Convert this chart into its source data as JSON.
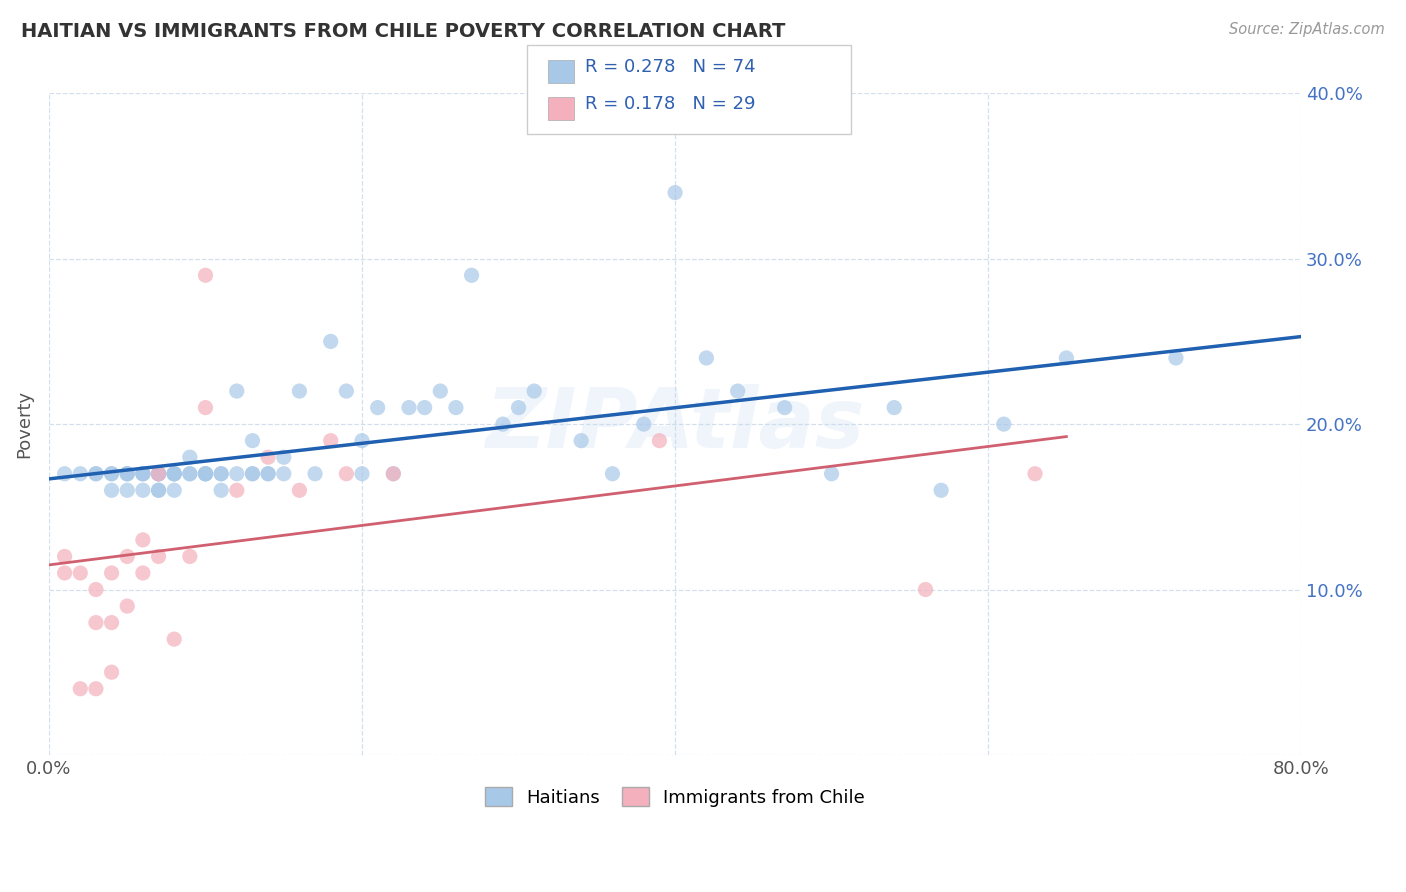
{
  "title": "HAITIAN VS IMMIGRANTS FROM CHILE POVERTY CORRELATION CHART",
  "source": "Source: ZipAtlas.com",
  "ylabel": "Poverty",
  "xlim": [
    0.0,
    0.8
  ],
  "ylim": [
    0.0,
    0.4
  ],
  "xticks": [
    0.0,
    0.2,
    0.4,
    0.6,
    0.8
  ],
  "xtick_labels": [
    "0.0%",
    "",
    "",
    "",
    "80.0%"
  ],
  "yticks": [
    0.0,
    0.1,
    0.2,
    0.3,
    0.4
  ],
  "ytick_labels_right": [
    "",
    "10.0%",
    "20.0%",
    "30.0%",
    "40.0%"
  ],
  "legend_labels": [
    "Haitians",
    "Immigrants from Chile"
  ],
  "r1": "0.278",
  "n1": "74",
  "r2": "0.178",
  "n2": "29",
  "blue_scatter": "#a8c8e8",
  "pink_scatter": "#f4b0bc",
  "blue_line": "#2060b0",
  "pink_line": "#d06070",
  "watermark": "ZIPAtlas",
  "haitians_x": [
    0.01,
    0.02,
    0.03,
    0.03,
    0.04,
    0.04,
    0.04,
    0.05,
    0.05,
    0.05,
    0.05,
    0.06,
    0.06,
    0.06,
    0.06,
    0.07,
    0.07,
    0.07,
    0.07,
    0.07,
    0.07,
    0.08,
    0.08,
    0.08,
    0.08,
    0.08,
    0.09,
    0.09,
    0.09,
    0.1,
    0.1,
    0.1,
    0.1,
    0.11,
    0.11,
    0.11,
    0.12,
    0.12,
    0.13,
    0.13,
    0.13,
    0.14,
    0.14,
    0.15,
    0.15,
    0.16,
    0.17,
    0.18,
    0.19,
    0.2,
    0.2,
    0.21,
    0.22,
    0.23,
    0.24,
    0.25,
    0.26,
    0.27,
    0.29,
    0.3,
    0.31,
    0.34,
    0.36,
    0.38,
    0.4,
    0.42,
    0.44,
    0.47,
    0.5,
    0.54,
    0.57,
    0.61,
    0.65,
    0.72
  ],
  "haitians_y": [
    0.17,
    0.17,
    0.17,
    0.17,
    0.17,
    0.16,
    0.17,
    0.17,
    0.17,
    0.16,
    0.17,
    0.17,
    0.17,
    0.17,
    0.16,
    0.17,
    0.17,
    0.16,
    0.17,
    0.16,
    0.17,
    0.17,
    0.17,
    0.16,
    0.17,
    0.17,
    0.17,
    0.17,
    0.18,
    0.17,
    0.17,
    0.17,
    0.17,
    0.16,
    0.17,
    0.17,
    0.17,
    0.22,
    0.17,
    0.17,
    0.19,
    0.17,
    0.17,
    0.17,
    0.18,
    0.22,
    0.17,
    0.25,
    0.22,
    0.19,
    0.17,
    0.21,
    0.17,
    0.21,
    0.21,
    0.22,
    0.21,
    0.29,
    0.2,
    0.21,
    0.22,
    0.19,
    0.17,
    0.2,
    0.34,
    0.24,
    0.22,
    0.21,
    0.17,
    0.21,
    0.16,
    0.2,
    0.24,
    0.24
  ],
  "chile_x": [
    0.01,
    0.01,
    0.02,
    0.02,
    0.03,
    0.03,
    0.03,
    0.04,
    0.04,
    0.04,
    0.05,
    0.05,
    0.06,
    0.06,
    0.07,
    0.07,
    0.08,
    0.09,
    0.1,
    0.1,
    0.12,
    0.14,
    0.16,
    0.18,
    0.19,
    0.22,
    0.39,
    0.56,
    0.63
  ],
  "chile_y": [
    0.12,
    0.11,
    0.11,
    0.04,
    0.1,
    0.08,
    0.04,
    0.11,
    0.08,
    0.05,
    0.12,
    0.09,
    0.13,
    0.11,
    0.12,
    0.17,
    0.07,
    0.12,
    0.21,
    0.29,
    0.16,
    0.18,
    0.16,
    0.19,
    0.17,
    0.17,
    0.19,
    0.1,
    0.17
  ]
}
